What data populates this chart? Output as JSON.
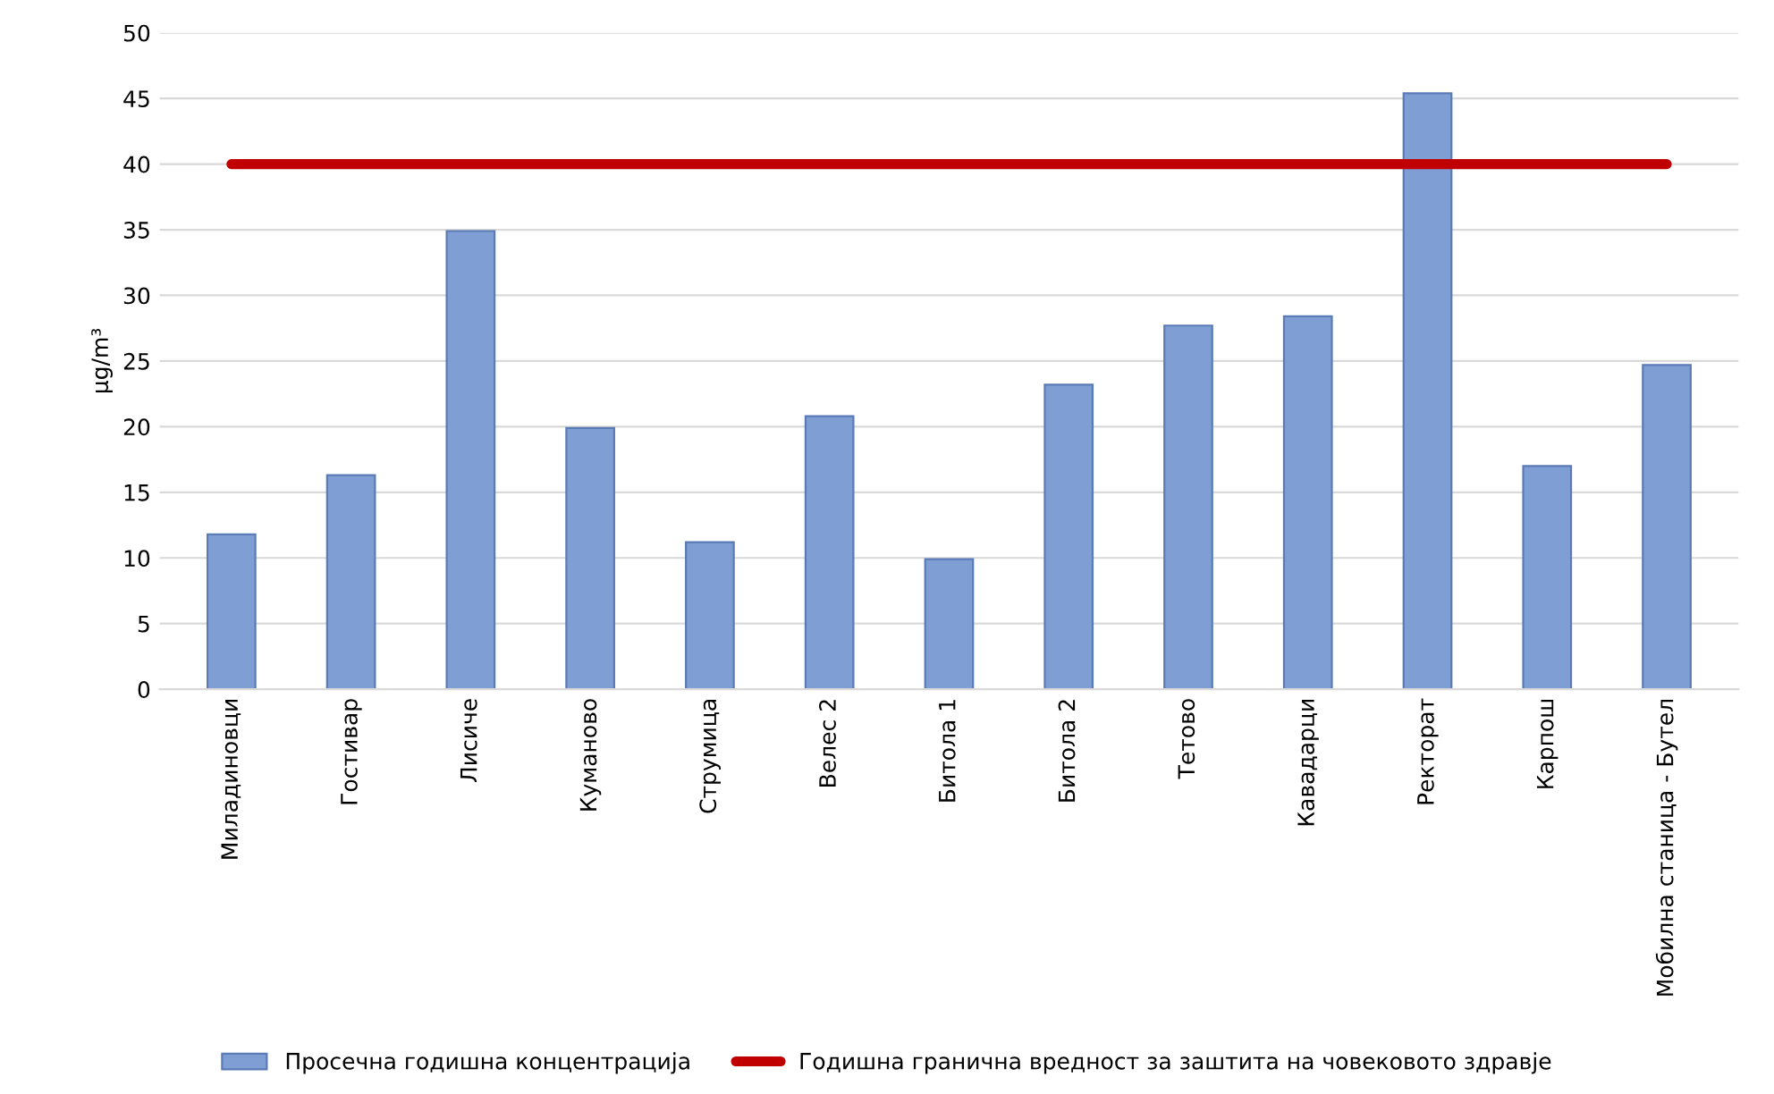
{
  "chart_data": {
    "type": "bar",
    "ylabel": "µg/m³",
    "categories": [
      "Миладиновци",
      "Гостивар",
      "Лисиче",
      "Куманово",
      "Струмица",
      "Велес 2",
      "Битола 1",
      "Битола 2",
      "Тетово",
      "Кавадарци",
      "Ректорат",
      "Карпош",
      "Мобилна станица - Бутел"
    ],
    "series": [
      {
        "name": "Просечна годишна концентрација",
        "color": "#7f9fd4",
        "values": [
          11.8,
          16.3,
          34.9,
          19.9,
          11.2,
          20.8,
          9.9,
          23.2,
          27.7,
          28.4,
          45.4,
          17.0,
          24.7
        ]
      },
      {
        "name": "Годишна гранична вредност за заштита на човековото здравје",
        "type": "line",
        "color": "#c00000",
        "values": [
          40,
          40,
          40,
          40,
          40,
          40,
          40,
          40,
          40,
          40,
          40,
          40,
          40
        ]
      }
    ],
    "ylim": [
      0,
      50
    ],
    "yticks": [
      0,
      5,
      10,
      15,
      20,
      25,
      30,
      35,
      40,
      45,
      50
    ],
    "grid": "y",
    "legend": "bottom"
  }
}
